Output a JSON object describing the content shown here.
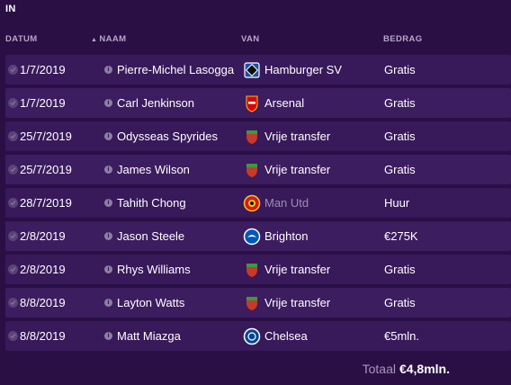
{
  "panel_title": "IN",
  "columns": {
    "date": "DATUM",
    "name": "NAAM",
    "from": "VAN",
    "fee": "BEDRAG"
  },
  "sort_arrow": "▲",
  "rows": [
    {
      "date": "1/7/2019",
      "name": "Pierre-Michel Lasogga",
      "club": "Hamburger SV",
      "fee": "Gratis",
      "badge": "hsv"
    },
    {
      "date": "1/7/2019",
      "name": "Carl Jenkinson",
      "club": "Arsenal",
      "fee": "Gratis",
      "badge": "arsenal"
    },
    {
      "date": "25/7/2019",
      "name": "Odysseas Spyrides",
      "club": "Vrije transfer",
      "fee": "Gratis",
      "badge": "free"
    },
    {
      "date": "25/7/2019",
      "name": "James Wilson",
      "club": "Vrije transfer",
      "fee": "Gratis",
      "badge": "free"
    },
    {
      "date": "28/7/2019",
      "name": "Tahith Chong",
      "club": "Man Utd",
      "fee": "Huur",
      "badge": "manutd"
    },
    {
      "date": "2/8/2019",
      "name": "Jason Steele",
      "club": "Brighton",
      "fee": "€275K",
      "badge": "brighton"
    },
    {
      "date": "2/8/2019",
      "name": "Rhys Williams",
      "club": "Vrije transfer",
      "fee": "Gratis",
      "badge": "free"
    },
    {
      "date": "8/8/2019",
      "name": "Layton Watts",
      "club": "Vrije transfer",
      "fee": "Gratis",
      "badge": "free"
    },
    {
      "date": "8/8/2019",
      "name": "Matt Miazga",
      "club": "Chelsea",
      "fee": "€5mln.",
      "badge": "chelsea"
    }
  ],
  "footer": {
    "label": "Totaal",
    "value": "€4,8mln."
  },
  "colors": {
    "background": "#2a0f45",
    "row": "#38195a",
    "header_text": "#b7a6cc"
  }
}
